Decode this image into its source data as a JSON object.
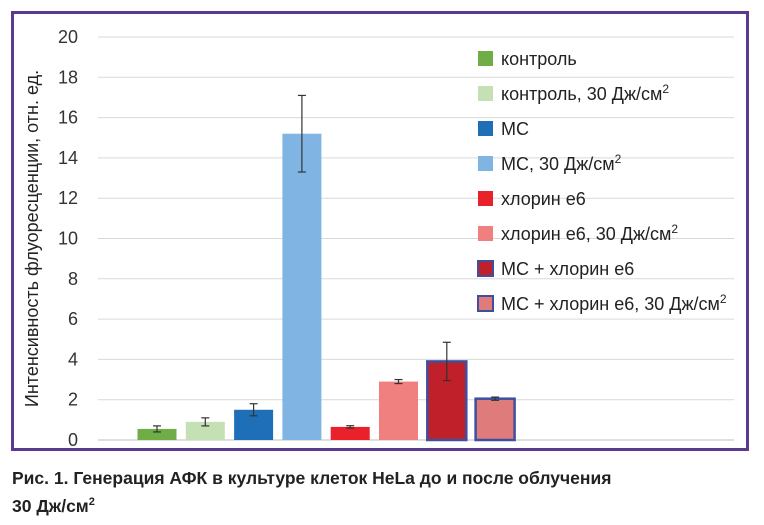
{
  "caption": {
    "line1": "Рис. 1. Генерация АФК в культуре клеток HeLa до и после облучения",
    "line2_main": "30 Дж/см",
    "line2_sup": "2"
  },
  "chart_data": {
    "type": "bar",
    "ylabel": "Интенсивность флуоресценции, отн. ед.",
    "ylim": [
      0,
      20
    ],
    "yticks": [
      0,
      2,
      4,
      6,
      8,
      10,
      12,
      14,
      16,
      18,
      20
    ],
    "grid": true,
    "legend_position": "right",
    "series": [
      {
        "name": "контроль",
        "sup": "",
        "value": 0.55,
        "error": 0.15,
        "color": "#70ad47",
        "border": ""
      },
      {
        "name": "контроль, 30 Дж/см",
        "sup": "2",
        "value": 0.9,
        "error": 0.2,
        "color": "#c5e0b4",
        "border": ""
      },
      {
        "name": "МС",
        "sup": "",
        "value": 1.5,
        "error": 0.3,
        "color": "#1f6fb8",
        "border": ""
      },
      {
        "name": "МС, 30 Дж/см",
        "sup": "2",
        "value": 15.2,
        "error": 1.9,
        "color": "#80b4e2",
        "border": ""
      },
      {
        "name": "хлорин е6",
        "sup": "",
        "value": 0.65,
        "error": 0.06,
        "color": "#e8212b",
        "border": ""
      },
      {
        "name": "хлорин е6, 30 Дж/см",
        "sup": "2",
        "value": 2.9,
        "error": 0.1,
        "color": "#f07f7f",
        "border": ""
      },
      {
        "name": "МС + хлорин е6",
        "sup": "",
        "value": 3.9,
        "error": 0.95,
        "color": "#c0202a",
        "border": "#3f4fa0"
      },
      {
        "name": "МС + хлорин е6, 30 Дж/см",
        "sup": "2",
        "value": 2.05,
        "error": 0.08,
        "color": "#e07b7b",
        "border": "#3f4fa0"
      }
    ]
  }
}
